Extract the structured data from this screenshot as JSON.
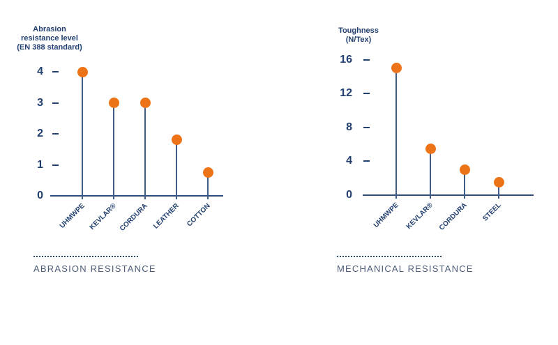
{
  "page": {
    "background": "#ffffff"
  },
  "colors": {
    "navy": "#22406f",
    "axis": "#2f4d7c",
    "stem": "#3f5d89",
    "orange": "#ed7318",
    "caption_text": "#4d5c79",
    "dotted_line": "#2e4a73"
  },
  "chart_data": [
    {
      "type": "lollipop",
      "title": "Abrasion\nresistance level\n(EN 388 standard)",
      "categories": [
        "UHMWPE",
        "KEVLAR®",
        "CORDURA",
        "LEATHER",
        "COTTON"
      ],
      "values": [
        4,
        3,
        3,
        1.8,
        0.75
      ],
      "yticks": [
        0,
        1,
        2,
        3,
        4
      ],
      "ylim": [
        0,
        4
      ],
      "xlabel": "",
      "ylabel": "Abrasion resistance level (EN 388 standard)",
      "grid": false,
      "legend_position": "none",
      "caption": "ABRASION RESISTANCE"
    },
    {
      "type": "lollipop",
      "title": "Toughness\n(N/Tex)",
      "categories": [
        "UHMWPE",
        "KEVLAR®",
        "CORDURA",
        "STEEL"
      ],
      "values": [
        15,
        5.5,
        3,
        1.5
      ],
      "yticks": [
        0,
        4,
        8,
        12,
        16
      ],
      "ylim": [
        0,
        16
      ],
      "xlabel": "",
      "ylabel": "Toughness (N/Tex)",
      "grid": false,
      "legend_position": "none",
      "caption": "MECHANICAL RESISTANCE"
    }
  ]
}
